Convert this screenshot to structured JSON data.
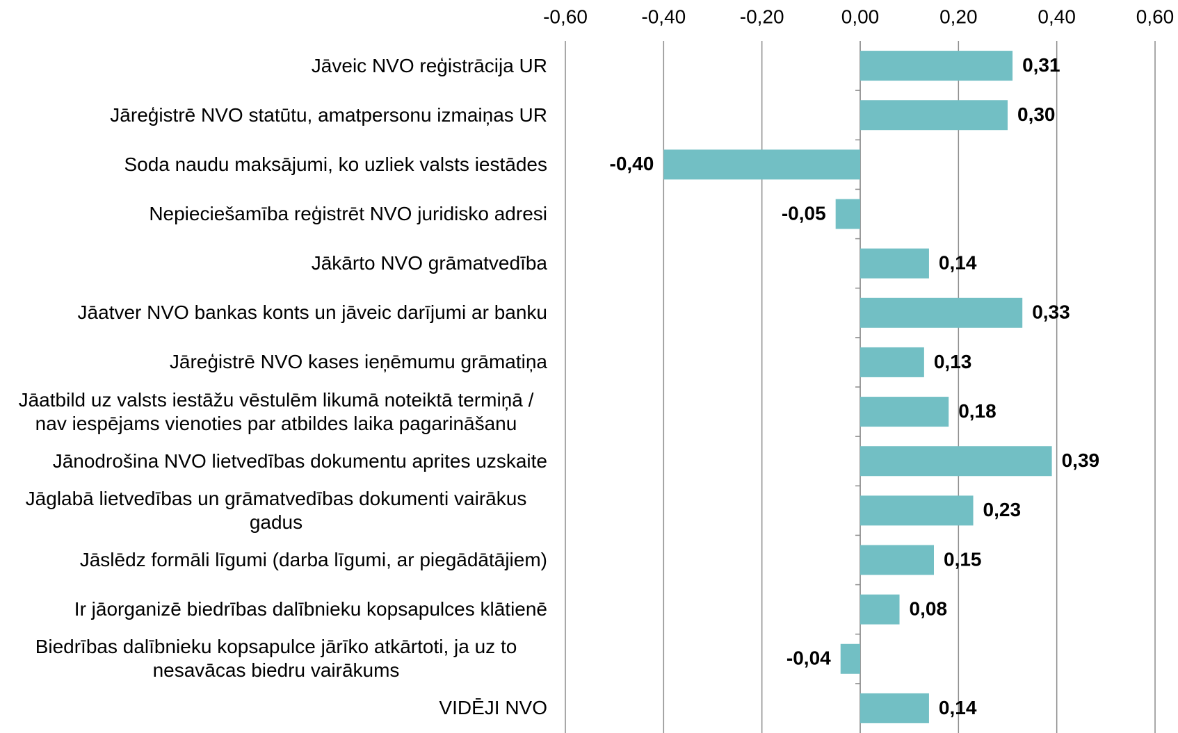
{
  "chart_data": {
    "type": "bar",
    "orientation": "horizontal",
    "categories": [
      "Jāveic NVO reģistrācija UR",
      "Jāreģistrē NVO statūtu, amatpersonu izmaiņas UR",
      "Soda naudu maksājumi, ko uzliek valsts iestādes",
      "Nepieciešamība reģistrēt NVO juridisko adresi",
      "Jākārto NVO grāmatvedība",
      "Jāatver NVO bankas konts un jāveic darījumi ar banku",
      "Jāreģistrē NVO kases ieņēmumu grāmatiņa",
      "Jāatbild uz valsts iestāžu vēstulēm likumā noteiktā termiņā / nav iespējams vienoties par atbildes laika pagarināšanu",
      "Jānodrošina NVO lietvedības dokumentu aprites uzskaite",
      "Jāglabā lietvedības un grāmatvedības dokumenti vairākus gadus",
      "Jāslēdz formāli līgumi (darba līgumi, ar piegādātājiem)",
      "Ir jāorganizē biedrības dalībnieku kopsapulces klātienē",
      "Biedrības dalībnieku kopsapulce jārīko atkārtoti, ja uz to nesavācas biedru vairākums",
      "VIDĒJI NVO"
    ],
    "values": [
      0.31,
      0.3,
      -0.4,
      -0.05,
      0.14,
      0.33,
      0.13,
      0.18,
      0.39,
      0.23,
      0.15,
      0.08,
      -0.04,
      0.14
    ],
    "value_labels": [
      "0,31",
      "0,30",
      "-0,40",
      "-0,05",
      "0,14",
      "0,33",
      "0,13",
      "0,18",
      "0,39",
      "0,23",
      "0,15",
      "0,08",
      "-0,04",
      "0,14"
    ],
    "color": "#72bfc4",
    "xlim": [
      -0.6,
      0.6
    ],
    "xticks": [
      {
        "value": -0.6,
        "label": "-0,60"
      },
      {
        "value": -0.4,
        "label": "-0,40"
      },
      {
        "value": -0.2,
        "label": "-0,20"
      },
      {
        "value": 0,
        "label": "0,00"
      },
      {
        "value": 0.2,
        "label": "0,20"
      },
      {
        "value": 0.4,
        "label": "0,40"
      },
      {
        "value": 0.6,
        "label": "0,60"
      }
    ],
    "xaxis_position": "top",
    "grid": true
  }
}
